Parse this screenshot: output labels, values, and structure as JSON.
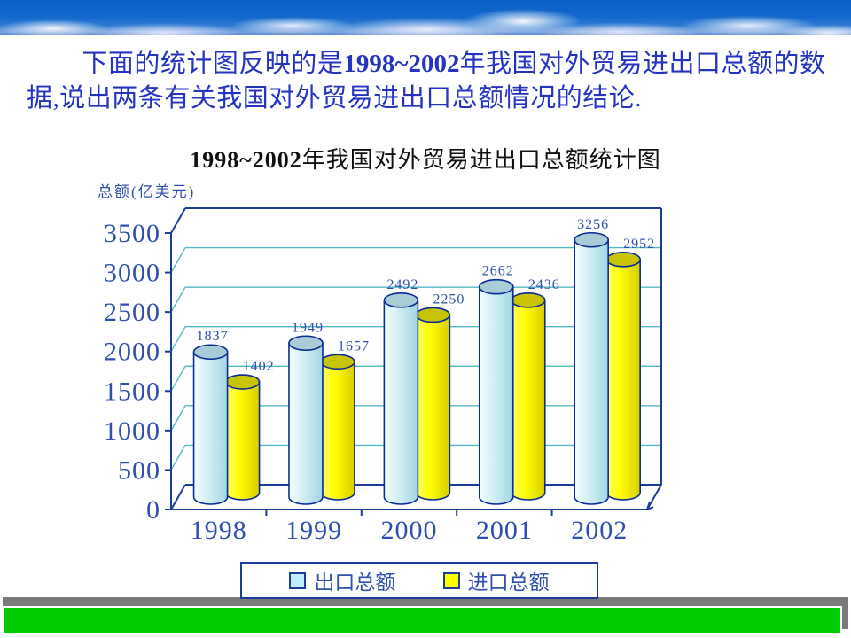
{
  "intro": {
    "part1": "下面的统计图反映的是",
    "bold": "1998~2002",
    "part2": "年我国对外贸易进出口总额的数据,说出两条有关我国对外贸易进出口总额情况的结论."
  },
  "chart_title": {
    "bold": "1998~2002",
    "rest": "年我国对外贸易进出口总额统计图"
  },
  "chart_data": {
    "type": "bar",
    "bar_shape": "cylinder-3d",
    "title": "1998~2002年我国对外贸易进出口总额统计图",
    "ylabel": "总额(亿美元)",
    "xlabel": "",
    "categories": [
      "1998",
      "1999",
      "2000",
      "2001",
      "2002"
    ],
    "series": [
      {
        "name": "出口总额",
        "values": [
          1837,
          1949,
          2492,
          2662,
          3256
        ]
      },
      {
        "name": "进口总额",
        "values": [
          1402,
          1657,
          2250,
          2436,
          2952
        ]
      }
    ],
    "ylim": [
      0,
      3500
    ],
    "ytick_step": 500,
    "yticks": [
      0,
      500,
      1000,
      1500,
      2000,
      2500,
      3000,
      3500
    ],
    "grid": true,
    "legend_position": "bottom"
  },
  "legend": {
    "items": [
      {
        "label": "出口总额",
        "color": "#bfeffb"
      },
      {
        "label": "进口总额",
        "color": "#ffff00"
      }
    ]
  },
  "colors": {
    "frame": "#1c3d96",
    "grid": "#52b8c6",
    "outline": "#0a2a96",
    "text_blue": "#2e4fae",
    "intro_blue": "#2433c0",
    "export_fill": "#cfeef4",
    "export_top": "#a9cdd6",
    "import_fill": "#ffff00",
    "import_top": "#c9c400",
    "green_bar": "#00cb00",
    "gray_bar": "#7a7a7a",
    "sky_blue": "#1168cc"
  }
}
